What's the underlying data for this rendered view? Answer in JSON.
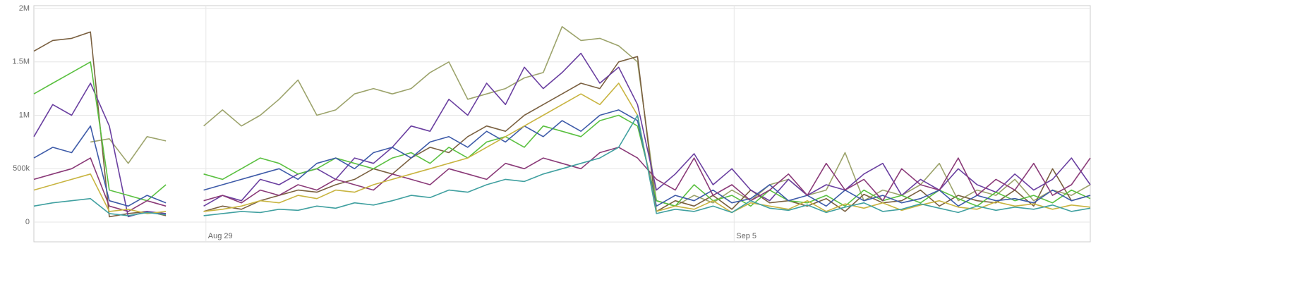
{
  "chart_data": {
    "type": "line",
    "x": [
      0,
      0.25,
      0.5,
      0.75,
      1,
      1.25,
      1.5,
      1.75,
      2,
      2.25,
      2.5,
      2.75,
      3,
      3.25,
      3.5,
      3.75,
      4,
      4.25,
      4.5,
      4.75,
      5,
      5.25,
      5.5,
      5.75,
      6,
      6.25,
      6.5,
      6.75,
      7,
      7.25,
      7.5,
      7.75,
      8,
      8.25,
      8.5,
      8.75,
      9,
      9.25,
      9.5,
      9.75,
      10,
      10.25,
      10.5,
      10.75,
      11,
      11.25,
      11.5,
      11.75,
      12,
      12.25,
      12.5,
      12.75,
      13,
      13.25,
      13.5,
      13.75,
      14
    ],
    "xlim": [
      0,
      14
    ],
    "xticks": [
      {
        "value": 2.28,
        "label": "Aug 29"
      },
      {
        "value": 9.28,
        "label": "Sep 5"
      }
    ],
    "ylim": [
      0,
      2000000
    ],
    "yticks": [
      0,
      {
        "value": 500000,
        "label": "500k"
      },
      {
        "value": 1000000,
        "label": "1M"
      },
      {
        "value": 1500000,
        "label": "1.5M"
      },
      {
        "value": 2000000,
        "label": "2M"
      }
    ],
    "grid": true,
    "series": [
      {
        "color": "#9ca36b",
        "values": [
          null,
          null,
          null,
          750000,
          780000,
          550000,
          800000,
          760000,
          null,
          900000,
          1050000,
          900000,
          1000000,
          1150000,
          1330000,
          1000000,
          1050000,
          1200000,
          1250000,
          1200000,
          1250000,
          1400000,
          1500000,
          1150000,
          1200000,
          1250000,
          1350000,
          1400000,
          1830000,
          1700000,
          1720000,
          1650000,
          1500000,
          200000,
          150000,
          250000,
          180000,
          300000,
          200000,
          350000,
          400000,
          250000,
          300000,
          650000,
          200000,
          300000,
          250000,
          350000,
          550000,
          200000,
          300000,
          250000,
          400000,
          200000,
          300000,
          250000,
          350000
        ]
      },
      {
        "color": "#7a6040",
        "values": [
          1600000,
          1700000,
          1720000,
          1780000,
          50000,
          80000,
          100000,
          60000,
          null,
          100000,
          150000,
          120000,
          200000,
          250000,
          300000,
          280000,
          350000,
          400000,
          500000,
          450000,
          600000,
          700000,
          650000,
          800000,
          900000,
          850000,
          1000000,
          1100000,
          1200000,
          1300000,
          1250000,
          1500000,
          1550000,
          100000,
          200000,
          150000,
          250000,
          120000,
          300000,
          180000,
          200000,
          150000,
          220000,
          100000,
          260000,
          180000,
          200000,
          300000,
          150000,
          250000,
          200000,
          180000,
          300000,
          150000,
          500000,
          200000,
          250000
        ]
      },
      {
        "color": "#6a3fa0",
        "values": [
          800000,
          1100000,
          1000000,
          1300000,
          900000,
          50000,
          100000,
          80000,
          null,
          150000,
          250000,
          200000,
          400000,
          350000,
          450000,
          500000,
          400000,
          600000,
          550000,
          700000,
          900000,
          850000,
          1150000,
          1000000,
          1300000,
          1100000,
          1450000,
          1250000,
          1400000,
          1580000,
          1300000,
          1450000,
          1100000,
          300000,
          450000,
          640000,
          350000,
          500000,
          300000,
          200000,
          400000,
          250000,
          350000,
          300000,
          450000,
          550000,
          250000,
          400000,
          300000,
          500000,
          350000,
          280000,
          450000,
          300000,
          400000,
          600000,
          350000
        ]
      },
      {
        "color": "#5ac040",
        "values": [
          1200000,
          1300000,
          1400000,
          1500000,
          300000,
          250000,
          200000,
          350000,
          null,
          450000,
          400000,
          500000,
          600000,
          550000,
          450000,
          500000,
          600000,
          550000,
          500000,
          600000,
          650000,
          550000,
          700000,
          600000,
          750000,
          800000,
          700000,
          900000,
          850000,
          800000,
          950000,
          1000000,
          900000,
          200000,
          150000,
          350000,
          200000,
          250000,
          150000,
          300000,
          200000,
          180000,
          250000,
          150000,
          300000,
          200000,
          250000,
          180000,
          300000,
          220000,
          150000,
          280000,
          200000,
          250000,
          180000,
          300000,
          220000
        ]
      },
      {
        "color": "#3d5aa8",
        "values": [
          600000,
          700000,
          650000,
          900000,
          200000,
          150000,
          250000,
          180000,
          null,
          300000,
          350000,
          400000,
          450000,
          500000,
          400000,
          550000,
          600000,
          500000,
          650000,
          700000,
          600000,
          750000,
          800000,
          700000,
          850000,
          750000,
          900000,
          800000,
          950000,
          850000,
          1000000,
          1050000,
          950000,
          150000,
          250000,
          200000,
          300000,
          180000,
          220000,
          350000,
          200000,
          250000,
          150000,
          300000,
          200000,
          250000,
          180000,
          220000,
          300000,
          150000,
          250000,
          200000,
          220000,
          180000,
          300000,
          200000,
          250000
        ]
      },
      {
        "color": "#8a3a78",
        "values": [
          400000,
          450000,
          500000,
          600000,
          150000,
          100000,
          200000,
          150000,
          null,
          200000,
          250000,
          180000,
          300000,
          250000,
          350000,
          300000,
          400000,
          350000,
          300000,
          450000,
          400000,
          350000,
          500000,
          450000,
          400000,
          550000,
          500000,
          600000,
          550000,
          500000,
          650000,
          700000,
          600000,
          400000,
          300000,
          600000,
          250000,
          350000,
          200000,
          300000,
          450000,
          250000,
          550000,
          300000,
          400000,
          200000,
          500000,
          350000,
          300000,
          600000,
          250000,
          400000,
          300000,
          550000,
          250000,
          350000,
          600000
        ]
      },
      {
        "color": "#c8b440",
        "values": [
          300000,
          350000,
          400000,
          450000,
          100000,
          120000,
          80000,
          100000,
          null,
          100000,
          120000,
          150000,
          200000,
          180000,
          250000,
          220000,
          300000,
          280000,
          350000,
          400000,
          450000,
          500000,
          550000,
          600000,
          700000,
          800000,
          900000,
          1000000,
          1100000,
          1200000,
          1100000,
          1300000,
          1000000,
          100000,
          150000,
          120000,
          200000,
          90000,
          180000,
          150000,
          120000,
          200000,
          100000,
          170000,
          130000,
          180000,
          110000,
          160000,
          200000,
          140000,
          120000,
          190000,
          150000,
          170000,
          120000,
          160000,
          140000
        ]
      },
      {
        "color": "#40a0a0",
        "values": [
          150000,
          180000,
          200000,
          220000,
          80000,
          60000,
          90000,
          70000,
          null,
          60000,
          80000,
          100000,
          90000,
          120000,
          110000,
          150000,
          130000,
          180000,
          160000,
          200000,
          250000,
          230000,
          300000,
          280000,
          350000,
          400000,
          380000,
          450000,
          500000,
          550000,
          600000,
          700000,
          1000000,
          80000,
          120000,
          100000,
          150000,
          90000,
          200000,
          130000,
          110000,
          160000,
          90000,
          140000,
          180000,
          100000,
          120000,
          170000,
          130000,
          90000,
          150000,
          110000,
          140000,
          120000,
          160000,
          100000,
          130000
        ]
      }
    ]
  }
}
